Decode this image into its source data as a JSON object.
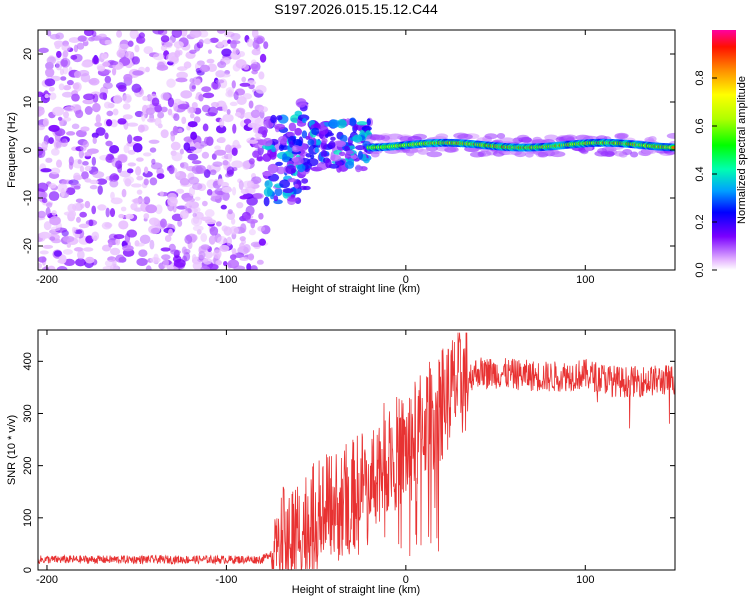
{
  "title": "S197.2026.015.15.12.C44",
  "chart_data": [
    {
      "type": "heatmap",
      "name": "spectrogram",
      "xlabel": "Height of straight line (km)",
      "ylabel": "Frequency (Hz)",
      "xlim": [
        -205,
        150
      ],
      "ylim": [
        -25,
        25
      ],
      "xticks": [
        -200,
        -100,
        0,
        100
      ],
      "yticks": [
        -20,
        -10,
        0,
        10,
        20
      ],
      "colorbar": {
        "label": "Normalized spectral amplitude",
        "range": [
          0,
          1
        ],
        "ticks": [
          "0.0",
          "0.2",
          "0.4",
          "0.6",
          "0.8"
        ]
      },
      "features": {
        "noise_region_x": [
          -205,
          -78
        ],
        "transition_region_x": [
          -78,
          -20
        ],
        "signal_band_center_hz": 1,
        "signal_band_x": [
          -20,
          150
        ]
      }
    },
    {
      "type": "line",
      "name": "snr",
      "xlabel": "Height of straight line (km)",
      "ylabel": "SNR (10 * v/v)",
      "xlim": [
        -205,
        150
      ],
      "ylim": [
        0,
        460
      ],
      "xticks": [
        -200,
        -100,
        0,
        100
      ],
      "yticks": [
        0,
        100,
        200,
        300,
        400
      ],
      "color": "#e83232",
      "profile": {
        "x": [
          -205,
          -80,
          -65,
          -50,
          -40,
          -30,
          -20,
          -10,
          0,
          10,
          20,
          30,
          40,
          60,
          80,
          100,
          120,
          150
        ],
        "y": [
          20,
          20,
          60,
          100,
          120,
          140,
          180,
          220,
          230,
          280,
          320,
          360,
          380,
          375,
          370,
          375,
          360,
          365
        ]
      }
    }
  ]
}
